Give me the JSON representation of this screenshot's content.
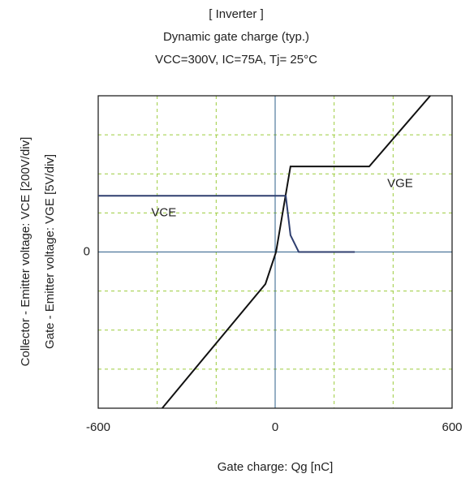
{
  "chart_data": {
    "type": "line",
    "title": "[ Inverter ]",
    "subtitle": "Dynamic gate charge  (typ.)",
    "conditions": "VCC=300V,  IC=75A, Tj= 25°C",
    "xlabel": "Gate charge: Qg [nC]",
    "ylabel": "Collector - Emitter voltage: VCE [200V/div]",
    "ylabel2": "Gate - Emitter voltage:  VGE [5V/div]",
    "xlim": [
      -600,
      600
    ],
    "xticks": [
      -600,
      0,
      600
    ],
    "xgrid": [
      -400,
      -200,
      200,
      400
    ],
    "ylim": [
      -4,
      4
    ],
    "yticks": [
      0
    ],
    "ygrid": [
      -3,
      -2,
      -1,
      1,
      2,
      3
    ],
    "series": [
      {
        "name": "VGE",
        "color": "#111111",
        "x": [
          -383,
          -33,
          3,
          52,
          319,
          526
        ],
        "values": [
          -4,
          -0.82,
          0,
          2.19,
          2.19,
          4
        ]
      },
      {
        "name": "VCE",
        "color": "#2f3f6f",
        "x": [
          -600,
          36,
          52,
          80,
          270
        ],
        "values": [
          1.44,
          1.44,
          0.43,
          0,
          0
        ]
      }
    ],
    "annotations": [
      {
        "text": "VGE",
        "x": 380,
        "y": 1.75
      },
      {
        "text": "VCE",
        "x": -420,
        "y": 1
      }
    ]
  }
}
